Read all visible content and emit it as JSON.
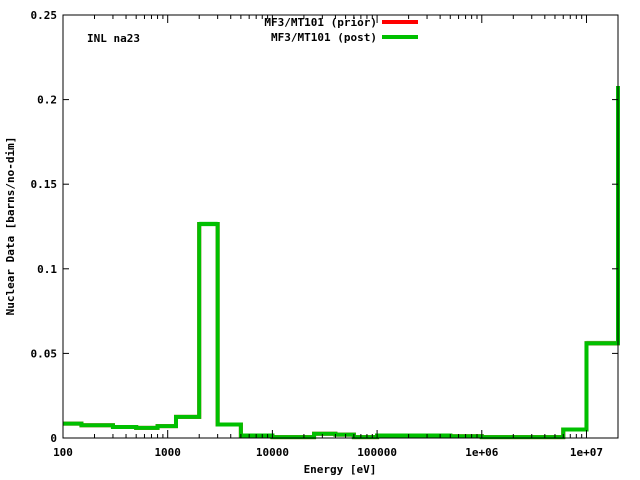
{
  "chart_data": {
    "type": "line",
    "title": "",
    "annotation": "INL na23",
    "xlabel": "Energy [eV]",
    "ylabel": "Nuclear Data [barns/no-dim]",
    "xscale": "log",
    "xlim": [
      100,
      20000000
    ],
    "ylim": [
      0,
      0.25
    ],
    "x_ticks": [
      {
        "value": 100,
        "label": "100"
      },
      {
        "value": 1000,
        "label": "1000"
      },
      {
        "value": 10000,
        "label": "10000"
      },
      {
        "value": 100000,
        "label": "100000"
      },
      {
        "value": 1000000,
        "label": "1e+06"
      },
      {
        "value": 10000000,
        "label": "1e+07"
      }
    ],
    "y_ticks": [
      {
        "value": 0,
        "label": "0"
      },
      {
        "value": 0.05,
        "label": "0.05"
      },
      {
        "value": 0.1,
        "label": "0.1"
      },
      {
        "value": 0.15,
        "label": "0.15"
      },
      {
        "value": 0.2,
        "label": "0.2"
      },
      {
        "value": 0.25,
        "label": "0.25"
      }
    ],
    "legend_position": "top-center",
    "grid": false,
    "bin_edges": [
      100,
      150,
      300,
      500,
      800,
      1200,
      2000,
      3000,
      5000,
      10000,
      25000,
      40000,
      60000,
      100000,
      250000,
      500000,
      800000,
      1000000,
      3500000,
      6000000,
      10000000,
      20000000
    ],
    "series": [
      {
        "name": "MF3/MT101 (prior)",
        "color": "#ff0000",
        "values": [
          0.0085,
          0.0075,
          0.0065,
          0.006,
          0.007,
          0.0125,
          0.1265,
          0.008,
          0.0015,
          0.0005,
          0.0025,
          0.002,
          0.0005,
          0.0015,
          0.0015,
          0.001,
          0.001,
          0.0005,
          0.0005,
          0.005,
          0.056,
          0.208
        ]
      },
      {
        "name": "MF3/MT101 (post)",
        "color": "#00c000",
        "band_color": "#b8f0b8",
        "values": [
          0.0085,
          0.0075,
          0.0065,
          0.006,
          0.007,
          0.0125,
          0.1265,
          0.008,
          0.0015,
          0.0005,
          0.0025,
          0.002,
          0.0005,
          0.0015,
          0.0015,
          0.001,
          0.001,
          0.0005,
          0.0005,
          0.005,
          0.056,
          0.208
        ],
        "uncertainty": [
          0.0005,
          0.0005,
          0.0005,
          0.0005,
          0.0005,
          0.0007,
          0.0015,
          0.0005,
          0.0003,
          0.0002,
          0.0003,
          0.0003,
          0.0002,
          0.0003,
          0.0003,
          0.0002,
          0.0002,
          0.0002,
          0.0002,
          0.0005,
          0.0015,
          0.012
        ]
      }
    ]
  }
}
